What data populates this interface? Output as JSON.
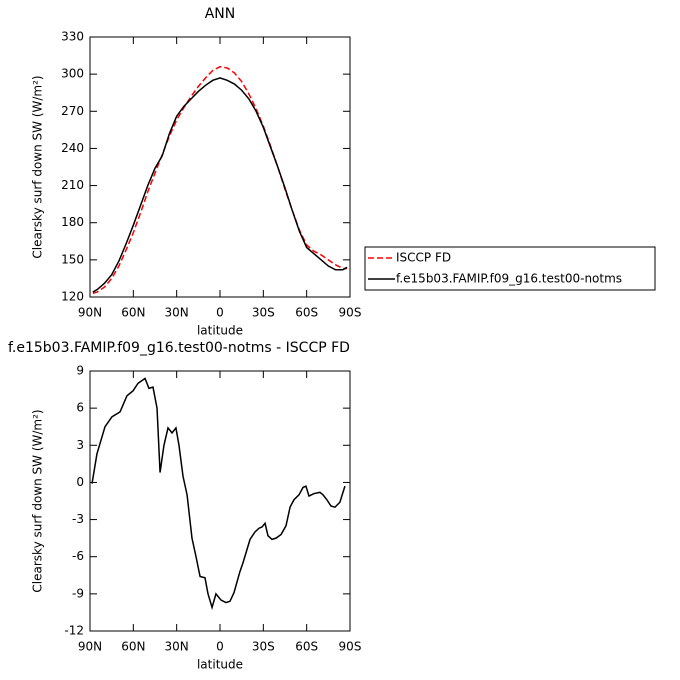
{
  "chart_data": [
    {
      "type": "line",
      "title": "ANN",
      "xlabel": "latitude",
      "ylabel": "Clearsky surf down SW (W/m²)",
      "xlim": [
        90,
        -90
      ],
      "xticks": [
        {
          "value": 90,
          "label": "90N"
        },
        {
          "value": 60,
          "label": "60N"
        },
        {
          "value": 30,
          "label": "30N"
        },
        0,
        {
          "value": -30,
          "label": "30S"
        },
        {
          "value": -60,
          "label": "60S"
        },
        {
          "value": -90,
          "label": "90S"
        }
      ],
      "ylim": [
        120,
        330
      ],
      "yticks": [
        120,
        150,
        180,
        210,
        240,
        270,
        300,
        330
      ],
      "legend": "right",
      "x": [
        88,
        85,
        80,
        75,
        70,
        65,
        60,
        55,
        50,
        45,
        40,
        35,
        30,
        25,
        20,
        15,
        10,
        5,
        0,
        -5,
        -10,
        -15,
        -20,
        -25,
        -30,
        -35,
        -40,
        -45,
        -50,
        -55,
        -60,
        -65,
        -70,
        -75,
        -80,
        -85,
        -88
      ],
      "series": [
        {
          "name": "ISCCP FD",
          "color": "#ff0000",
          "linestyle": "dashed",
          "values": [
            123,
            124,
            128,
            135,
            145,
            158,
            172,
            188,
            205,
            220,
            235,
            250,
            263,
            273,
            282,
            290,
            297,
            303,
            306,
            305,
            301,
            294,
            284,
            272,
            258,
            242,
            225,
            207,
            190,
            174,
            162,
            157,
            154,
            150,
            146,
            143,
            143
          ]
        },
        {
          "name": "f.e15b03.FAMIP.f09_g16.test00-notms",
          "color": "#000000",
          "linestyle": "solid",
          "values": [
            124,
            126,
            131,
            138,
            149,
            163,
            178,
            194,
            210,
            224,
            234,
            252,
            266,
            274,
            280,
            286,
            291,
            295,
            297,
            295,
            292,
            287,
            280,
            270,
            257,
            241,
            225,
            208,
            190,
            173,
            160,
            155,
            150,
            145,
            142,
            142,
            144
          ]
        }
      ]
    },
    {
      "type": "line",
      "title": "f.e15b03.FAMIP.f09_g16.test00-notms - ISCCP FD",
      "xlabel": "latitude",
      "ylabel": "Clearsky surf down SW (W/m²)",
      "xlim": [
        90,
        -90
      ],
      "xticks": [
        {
          "value": 90,
          "label": "90N"
        },
        {
          "value": 60,
          "label": "60N"
        },
        {
          "value": 30,
          "label": "30N"
        },
        0,
        {
          "value": -30,
          "label": "30S"
        },
        {
          "value": -60,
          "label": "60S"
        },
        {
          "value": -90,
          "label": "90S"
        }
      ],
      "ylim": [
        -12,
        9
      ],
      "yticks": [
        -12,
        -9,
        -6,
        -3,
        0,
        3,
        6,
        9
      ],
      "x": [
        88.6,
        85.2,
        79.6,
        74.8,
        69.2,
        64.4,
        60.2,
        56.8,
        51.9,
        49.2,
        46.4,
        43.6,
        41.5,
        38.8,
        36.0,
        33.2,
        30.5,
        28.4,
        25.6,
        22.8,
        19.4,
        16.6,
        13.8,
        10.4,
        8.3,
        5.5,
        2.8,
        -0.7,
        -4.1,
        -6.9,
        -9.7,
        -13.8,
        -15.9,
        -20.8,
        -24.2,
        -27.0,
        -29.1,
        -31.2,
        -33.2,
        -36.0,
        -38.8,
        -42.3,
        -45.7,
        -48.5,
        -51.2,
        -54.7,
        -57.5,
        -59.5,
        -61.6,
        -65.1,
        -69.2,
        -71.3,
        -74.0,
        -76.8,
        -79.6,
        -83.0,
        -86.5
      ],
      "series": [
        {
          "color": "#000000",
          "linestyle": "solid",
          "values": [
            -0.1,
            2.3,
            4.5,
            5.3,
            5.7,
            7.0,
            7.4,
            8.0,
            8.4,
            7.6,
            7.7,
            6.0,
            0.8,
            3.0,
            4.4,
            4.0,
            4.4,
            3.0,
            0.5,
            -1.0,
            -4.5,
            -6.0,
            -7.6,
            -7.7,
            -9.0,
            -10.1,
            -9.0,
            -9.5,
            -9.7,
            -9.6,
            -8.9,
            -7.2,
            -6.5,
            -4.6,
            -4.0,
            -3.7,
            -3.6,
            -3.3,
            -4.3,
            -4.6,
            -4.5,
            -4.2,
            -3.5,
            -2.0,
            -1.4,
            -1.0,
            -0.4,
            -0.3,
            -1.1,
            -0.9,
            -0.8,
            -1.0,
            -1.4,
            -1.9,
            -2.0,
            -1.6,
            -0.3
          ]
        }
      ]
    }
  ]
}
